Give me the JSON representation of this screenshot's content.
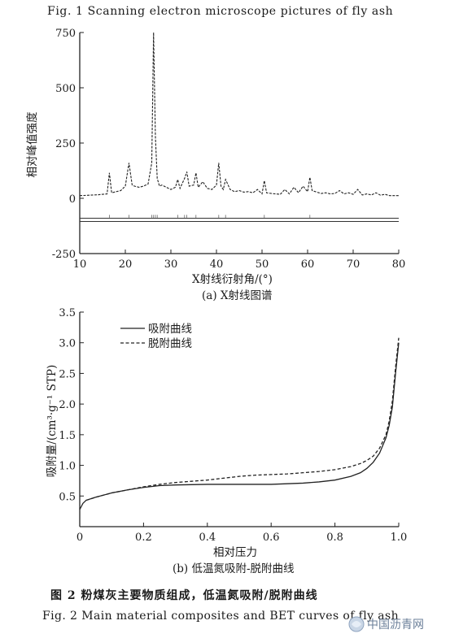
{
  "fig1_caption": "Fig. 1   Scanning electron microscope pictures of fly ash",
  "fig2_caption_cn": "图 2   粉煤灰主要物质组成，低温氮吸附/脱附曲线",
  "fig2_caption_en": "Fig. 2   Main material composites and BET curves of fly ash",
  "watermark": "中国沥青网",
  "chart_data": [
    {
      "type": "line",
      "subcaption": "(a) X射线图谱",
      "xlabel": "X射线衍射角/(°)",
      "ylabel": "相对峰值强度",
      "xlim": [
        10,
        80
      ],
      "ylim": [
        -250,
        750
      ],
      "xticks": [
        10,
        20,
        30,
        40,
        50,
        60,
        70,
        80
      ],
      "yticks": [
        -250,
        0,
        250,
        500,
        750
      ],
      "series": [
        {
          "style": "dashed",
          "x": [
            10,
            12,
            14,
            15,
            16,
            16.5,
            17,
            18,
            19,
            20,
            20.8,
            21.5,
            22,
            23,
            24,
            25,
            25.8,
            26.2,
            26.6,
            27,
            27.5,
            28,
            29,
            30,
            31,
            31.5,
            32,
            33,
            33.5,
            34,
            35,
            35.5,
            36,
            37,
            38,
            39,
            40,
            40.5,
            41,
            41.5,
            42,
            43,
            44,
            45,
            46,
            47,
            48,
            49,
            50,
            50.5,
            51,
            52,
            54,
            55,
            56,
            57,
            58,
            59,
            60,
            60.5,
            61,
            62,
            63,
            64,
            65,
            66,
            67,
            68,
            69,
            70,
            71,
            72,
            73,
            74,
            75,
            76,
            77,
            78,
            79,
            80
          ],
          "y": [
            12,
            14,
            16,
            18,
            20,
            115,
            25,
            30,
            35,
            55,
            160,
            60,
            55,
            50,
            55,
            65,
            160,
            750,
            280,
            90,
            55,
            60,
            50,
            40,
            50,
            85,
            45,
            90,
            120,
            55,
            60,
            115,
            50,
            75,
            45,
            40,
            60,
            160,
            55,
            40,
            85,
            40,
            30,
            35,
            28,
            30,
            25,
            40,
            20,
            80,
            25,
            22,
            18,
            40,
            20,
            50,
            25,
            55,
            30,
            95,
            35,
            28,
            22,
            25,
            20,
            22,
            35,
            20,
            25,
            18,
            40,
            15,
            20,
            15,
            25,
            14,
            18,
            12,
            12,
            12
          ]
        }
      ],
      "reference_lines_y": [
        -90,
        -105
      ]
    },
    {
      "type": "line",
      "subcaption": "(b) 低温氮吸附-脱附曲线",
      "xlabel": "相对压力",
      "ylabel": "吸附量/(cm³·g⁻¹ STP)",
      "xlim": [
        0,
        1.0
      ],
      "ylim": [
        0,
        3.5
      ],
      "xticks": [
        "0",
        "0.2",
        "0.4",
        "0.6",
        "0.8",
        "1.0"
      ],
      "yticks": [
        "0.5",
        "1.0",
        "1.5",
        "2.0",
        "2.5",
        "3.0",
        "3.5"
      ],
      "legend_position": "top-left",
      "series": [
        {
          "name": "吸附曲线",
          "style": "solid",
          "x": [
            0,
            0.01,
            0.02,
            0.05,
            0.1,
            0.15,
            0.2,
            0.25,
            0.3,
            0.4,
            0.5,
            0.6,
            0.7,
            0.75,
            0.8,
            0.85,
            0.88,
            0.9,
            0.92,
            0.94,
            0.96,
            0.97,
            0.98,
            0.99,
            1.0
          ],
          "y": [
            0.28,
            0.38,
            0.43,
            0.48,
            0.55,
            0.6,
            0.64,
            0.67,
            0.68,
            0.69,
            0.69,
            0.69,
            0.71,
            0.73,
            0.76,
            0.82,
            0.88,
            0.95,
            1.05,
            1.2,
            1.45,
            1.65,
            1.95,
            2.5,
            3.0
          ]
        },
        {
          "name": "脱附曲线",
          "style": "dashed",
          "x": [
            0.02,
            0.05,
            0.1,
            0.15,
            0.2,
            0.25,
            0.3,
            0.35,
            0.4,
            0.45,
            0.5,
            0.55,
            0.6,
            0.65,
            0.7,
            0.75,
            0.8,
            0.85,
            0.88,
            0.9,
            0.92,
            0.94,
            0.96,
            0.97,
            0.98,
            0.99,
            1.0
          ],
          "y": [
            0.43,
            0.48,
            0.55,
            0.6,
            0.65,
            0.69,
            0.72,
            0.74,
            0.76,
            0.79,
            0.82,
            0.84,
            0.85,
            0.86,
            0.88,
            0.9,
            0.93,
            0.98,
            1.03,
            1.08,
            1.15,
            1.28,
            1.5,
            1.72,
            2.05,
            2.6,
            3.08
          ]
        }
      ]
    }
  ]
}
